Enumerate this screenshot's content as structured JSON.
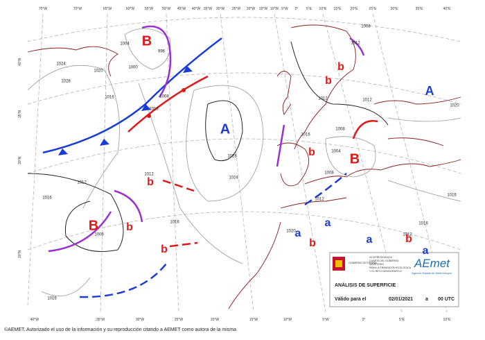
{
  "longitude_labels_top": [
    "75°W",
    "70°W",
    "65°W",
    "60°W",
    "55°W",
    "50°W",
    "45°W",
    "40°W",
    "35°W",
    "30°W",
    "25°W",
    "20°W",
    "15°W",
    "10°W",
    "5°W",
    "0°",
    "5°E",
    "10°E",
    "15°E",
    "20°E",
    "25°E",
    "30°E",
    "35°E",
    "40°E"
  ],
  "longitude_labels_bottom": [
    "40°W",
    "35°W",
    "30°W",
    "25°W",
    "20°W",
    "15°W",
    "10°W",
    "5°W",
    "0°",
    "5°E",
    "10°E"
  ],
  "latitude_labels": [
    "40°N",
    "35°N",
    "30°N",
    "20°N"
  ],
  "pressure_centers": [
    {
      "label": "B",
      "color": "#e01818"
    },
    {
      "label": "A",
      "color": "#1a3cd6"
    },
    {
      "label": "B",
      "color": "#e01818"
    },
    {
      "label": "B",
      "color": "#e01818"
    },
    {
      "label": "A",
      "color": "#1a3cd6"
    },
    {
      "label": "b",
      "color": "#e01818"
    },
    {
      "label": "b",
      "color": "#e01818"
    },
    {
      "label": "b",
      "color": "#e01818"
    },
    {
      "label": "b",
      "color": "#e01818"
    },
    {
      "label": "b",
      "color": "#e01818"
    },
    {
      "label": "b",
      "color": "#e01818"
    },
    {
      "label": "b",
      "color": "#e01818"
    },
    {
      "label": "b",
      "color": "#e01818"
    },
    {
      "label": "a",
      "color": "#1a3cd6"
    },
    {
      "label": "a",
      "color": "#1a3cd6"
    },
    {
      "label": "a",
      "color": "#1a3cd6"
    },
    {
      "label": "a",
      "color": "#1a3cd6"
    }
  ],
  "isobar_labels": [
    "1028",
    "1024",
    "1020",
    "1016",
    "1012",
    "1016",
    "1016",
    "1008",
    "1028",
    "1024",
    "1016",
    "1012",
    "1016",
    "996",
    "1000",
    "1004",
    "1008",
    "1012",
    "1012",
    "1012",
    "1008",
    "1012",
    "1016",
    "1008",
    "1004",
    "1008",
    "1012",
    "1016",
    "1016",
    "1020",
    "1020"
  ],
  "info_box": {
    "agency_lines": [
      "VICEPRESIDENCIA",
      "CUARTA DEL GOBIERNO",
      "MINISTERIO",
      "PARA LA TRANSICIÓN ECOLÓGICA",
      "Y EL RETO DEMOGRÁFICO"
    ],
    "government": "GOBIERNO DE ESPAÑA",
    "logo": "AEmet",
    "logo_subtitle": "Agencia Estatal de Meteorología",
    "title": "ANÁLISIS DE SUPERFICIE",
    "valid_label": "Válido para el",
    "date": "02/01/2021",
    "connector": "a",
    "time": "00 UTC"
  },
  "footer": "©AEMET. Autorizado el uso de la información y su reproducción citando a AEMET como autora de la misma"
}
